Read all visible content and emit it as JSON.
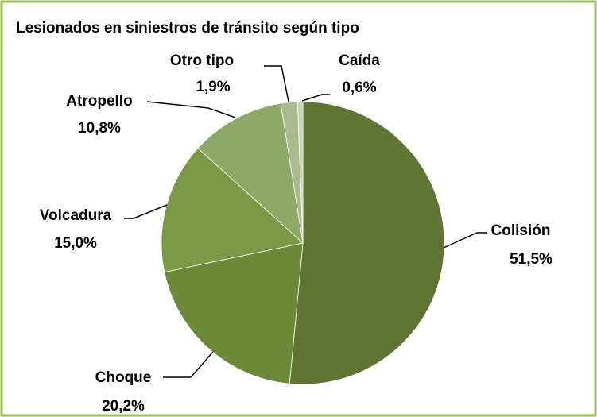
{
  "chart_data": {
    "type": "pie",
    "title": "Lesionados en siniestros de tránsito según tipo",
    "categories": [
      "Colisión",
      "Choque",
      "Volcadura",
      "Atropello",
      "Otro tipo",
      "Caída"
    ],
    "values": [
      51.5,
      20.2,
      15.0,
      10.8,
      1.9,
      0.6
    ],
    "value_labels": [
      "51,5%",
      "20,2%",
      "15,0%",
      "10,8%",
      "1,9%",
      "0,6%"
    ],
    "colors": [
      "#5f7533",
      "#6d8938",
      "#799944",
      "#8ea868",
      "#a9ba8f",
      "#c7d1b7"
    ]
  }
}
